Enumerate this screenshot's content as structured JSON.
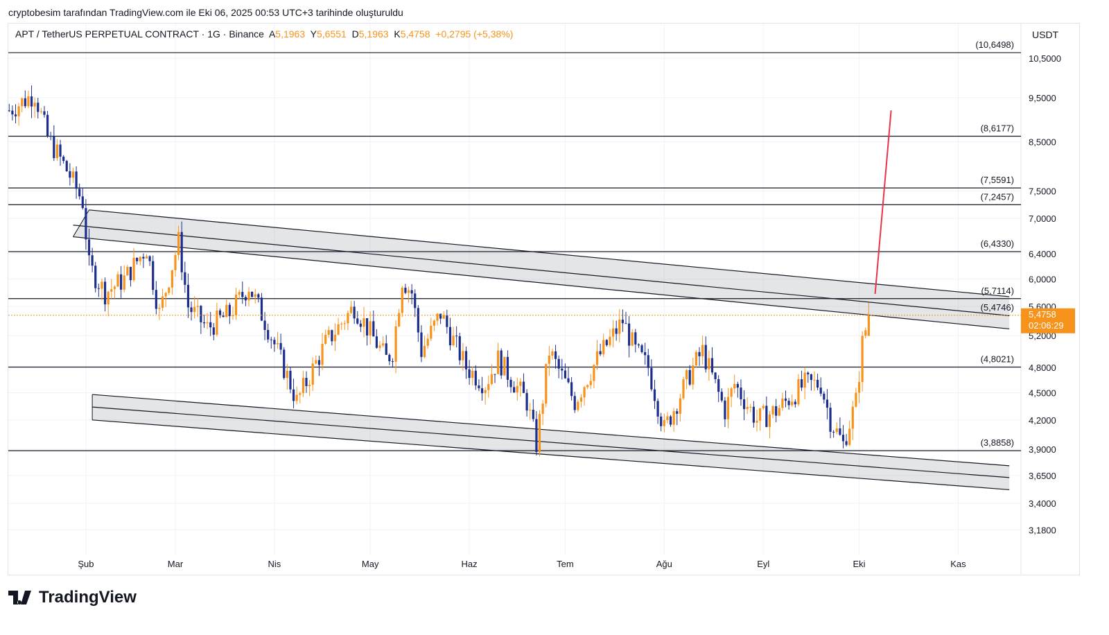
{
  "caption": "cryptobesim tarafından TradingView.com ile Eki 06, 2025 00:53 UTC+3 tarihinde oluşturuldu",
  "legend": {
    "symbol": "APT / TetherUS PERPETUAL CONTRACT · 1G · Binance",
    "o_label": "A",
    "o": "5,1963",
    "h_label": "Y",
    "h": "5,6551",
    "l_label": "D",
    "l": "5,1963",
    "c_label": "K",
    "c": "5,4758",
    "change": "+0,2795 (+5,38%)"
  },
  "currency": "USDT",
  "brand": "TradingView",
  "colors": {
    "up": "#f7931a",
    "down": "#1c2e8c",
    "accent": "#f7931a",
    "target": "#e8334a"
  },
  "chart_data": {
    "type": "candlestick",
    "title": "APT / TetherUS PERPETUAL CONTRACT · 1G · Binance",
    "y_scale": "log",
    "ylim": [
      3.0,
      11.2
    ],
    "y_ticks": [
      "10,5000",
      "9,5000",
      "8,5000",
      "7,5000",
      "7,0000",
      "6,4000",
      "6,0000",
      "5,6000",
      "5,2000",
      "4,8000",
      "4,5000",
      "4,2000",
      "3,9000",
      "3,6500",
      "3,4000",
      "3,1800"
    ],
    "y_tick_values": [
      10.5,
      9.5,
      8.5,
      7.5,
      7.0,
      6.4,
      6.0,
      5.6,
      5.2,
      4.8,
      4.5,
      4.2,
      3.9,
      3.65,
      3.4,
      3.18
    ],
    "x_ticks": [
      {
        "label": "Şub",
        "day": 31
      },
      {
        "label": "Mar",
        "day": 59
      },
      {
        "label": "Nis",
        "day": 90
      },
      {
        "label": "May",
        "day": 120
      },
      {
        "label": "Haz",
        "day": 151
      },
      {
        "label": "Tem",
        "day": 181
      },
      {
        "label": "Ağu",
        "day": 212
      },
      {
        "label": "Eyl",
        "day": 243
      },
      {
        "label": "Eki",
        "day": 273
      },
      {
        "label": "Kas",
        "day": 304
      }
    ],
    "close_path": [
      [
        7,
        9.2
      ],
      [
        15,
        9.6
      ],
      [
        19,
        8.6
      ],
      [
        26,
        7.8
      ],
      [
        30,
        7.3
      ],
      [
        32,
        6.2
      ],
      [
        37,
        5.8
      ],
      [
        43,
        6.0
      ],
      [
        50,
        6.5
      ],
      [
        54,
        5.5
      ],
      [
        60,
        6.6
      ],
      [
        63,
        5.6
      ],
      [
        69,
        5.3
      ],
      [
        76,
        5.5
      ],
      [
        82,
        5.9
      ],
      [
        88,
        5.3
      ],
      [
        95,
        4.6
      ],
      [
        97,
        4.4
      ],
      [
        106,
        5.1
      ],
      [
        115,
        5.6
      ],
      [
        125,
        4.9
      ],
      [
        127,
        5.0
      ],
      [
        130,
        6.0
      ],
      [
        133,
        5.8
      ],
      [
        136,
        5.0
      ],
      [
        142,
        5.5
      ],
      [
        150,
        4.8
      ],
      [
        156,
        4.6
      ],
      [
        160,
        4.9
      ],
      [
        169,
        4.4
      ],
      [
        172,
        3.95
      ],
      [
        176,
        5.0
      ],
      [
        184,
        4.4
      ],
      [
        191,
        4.9
      ],
      [
        199,
        5.4
      ],
      [
        203,
        5.0
      ],
      [
        207,
        4.8
      ],
      [
        212,
        4.1
      ],
      [
        221,
        4.8
      ],
      [
        224,
        5.0
      ],
      [
        231,
        4.3
      ],
      [
        234,
        4.6
      ],
      [
        241,
        4.2
      ],
      [
        247,
        4.3
      ],
      [
        256,
        4.6
      ],
      [
        261,
        4.6
      ],
      [
        264,
        4.2
      ],
      [
        268,
        3.95
      ],
      [
        272,
        4.4
      ],
      [
        274,
        5.1
      ],
      [
        276,
        5.4758
      ]
    ],
    "levels": [
      {
        "label": "(10,6498)",
        "value": 10.6498
      },
      {
        "label": "(8,6177)",
        "value": 8.6177
      },
      {
        "label": "(7,5591)",
        "value": 7.5591
      },
      {
        "label": "(7,2457)",
        "value": 7.2457
      },
      {
        "label": "(6,4330)",
        "value": 6.433
      },
      {
        "label": "(5,7114)",
        "value": 5.7114
      },
      {
        "label": "(5,4746)",
        "value": 5.4746,
        "line": false
      },
      {
        "label": "(4,8021)",
        "value": 4.8021
      },
      {
        "label": "(3,8858)",
        "value": 3.8858
      }
    ],
    "channel_upper": [
      [
        [
          32,
          7.15
        ],
        [
          320,
          5.74
        ]
      ],
      [
        [
          27,
          6.88
        ],
        [
          320,
          5.47
        ]
      ],
      [
        [
          27,
          6.68
        ],
        [
          320,
          5.29
        ]
      ]
    ],
    "channel_lower": [
      [
        [
          33,
          4.48
        ],
        [
          320,
          3.74
        ]
      ],
      [
        [
          33,
          4.34
        ],
        [
          320,
          3.63
        ]
      ],
      [
        [
          33,
          4.2
        ],
        [
          320,
          3.52
        ]
      ]
    ],
    "target_line": [
      [
        278,
        5.78
      ],
      [
        283,
        9.2
      ]
    ],
    "last_price": {
      "value": 5.4758,
      "label": "5,4758",
      "countdown": "02:06:29"
    }
  }
}
